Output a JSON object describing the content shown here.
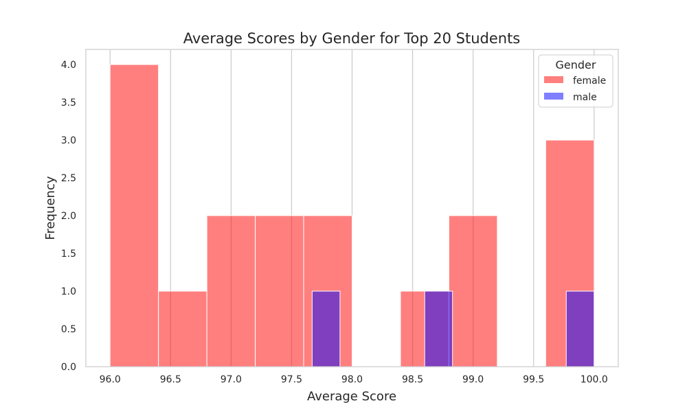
{
  "chart_data": {
    "type": "bar",
    "title": "Average Scores by Gender for Top 20 Students",
    "xlabel": "Average Score",
    "ylabel": "Frequency",
    "xlim": [
      95.8,
      100.2
    ],
    "ylim": [
      0,
      4.2
    ],
    "x_ticks": [
      "96.0",
      "96.5",
      "97.0",
      "97.5",
      "98.0",
      "98.5",
      "99.0",
      "99.5",
      "100.0"
    ],
    "x_tick_values": [
      96.0,
      96.5,
      97.0,
      97.5,
      98.0,
      98.5,
      99.0,
      99.5,
      100.0
    ],
    "y_ticks": [
      "0.0",
      "0.5",
      "1.0",
      "1.5",
      "2.0",
      "2.5",
      "3.0",
      "3.5",
      "4.0"
    ],
    "y_tick_values": [
      0,
      0.5,
      1.0,
      1.5,
      2.0,
      2.5,
      3.0,
      3.5,
      4.0
    ],
    "grid": "vertical",
    "legend": {
      "title": "Gender",
      "position": "top-right"
    },
    "series": [
      {
        "name": "female",
        "color": "#ff0000",
        "bins": [
          {
            "x0": 96.0,
            "x1": 96.4,
            "count": 4
          },
          {
            "x0": 96.4,
            "x1": 96.8,
            "count": 1
          },
          {
            "x0": 96.8,
            "x1": 97.2,
            "count": 2
          },
          {
            "x0": 97.2,
            "x1": 97.6,
            "count": 2
          },
          {
            "x0": 97.6,
            "x1": 98.0,
            "count": 2
          },
          {
            "x0": 98.4,
            "x1": 98.8,
            "count": 1
          },
          {
            "x0": 98.8,
            "x1": 99.2,
            "count": 2
          },
          {
            "x0": 99.6,
            "x1": 100.0,
            "count": 3
          }
        ]
      },
      {
        "name": "male",
        "color": "#0000ff",
        "bins": [
          {
            "x0": 97.67,
            "x1": 97.9,
            "count": 1
          },
          {
            "x0": 98.6,
            "x1": 98.83,
            "count": 1
          },
          {
            "x0": 99.77,
            "x1": 100.0,
            "count": 1
          }
        ]
      }
    ]
  }
}
